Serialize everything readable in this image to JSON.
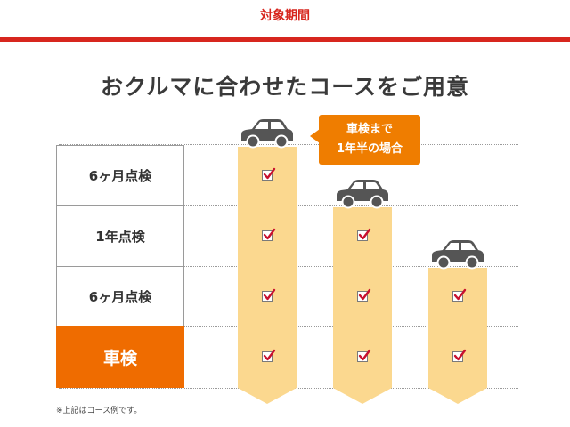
{
  "header": {
    "title": "対象期間"
  },
  "headline": "おクルマに合わせたコースをご用意",
  "rows": [
    {
      "label": "6ヶ月点検"
    },
    {
      "label": "1年点検"
    },
    {
      "label": "6ヶ月点検"
    },
    {
      "label": "車検"
    }
  ],
  "bubble": {
    "line1": "車検まで",
    "line2": "1年半の場合"
  },
  "footnote": "※上記はコース例です。",
  "colors": {
    "brand_red": "#d7261e",
    "orange": "#ef6c00",
    "bar": "#fbd88f",
    "check": "#c8102e"
  },
  "courses": [
    {
      "checked_rows": 4
    },
    {
      "checked_rows": 3
    },
    {
      "checked_rows": 2
    }
  ],
  "icons": {
    "vehicle": "car-icon",
    "mark": "checkbox-checked-icon"
  }
}
